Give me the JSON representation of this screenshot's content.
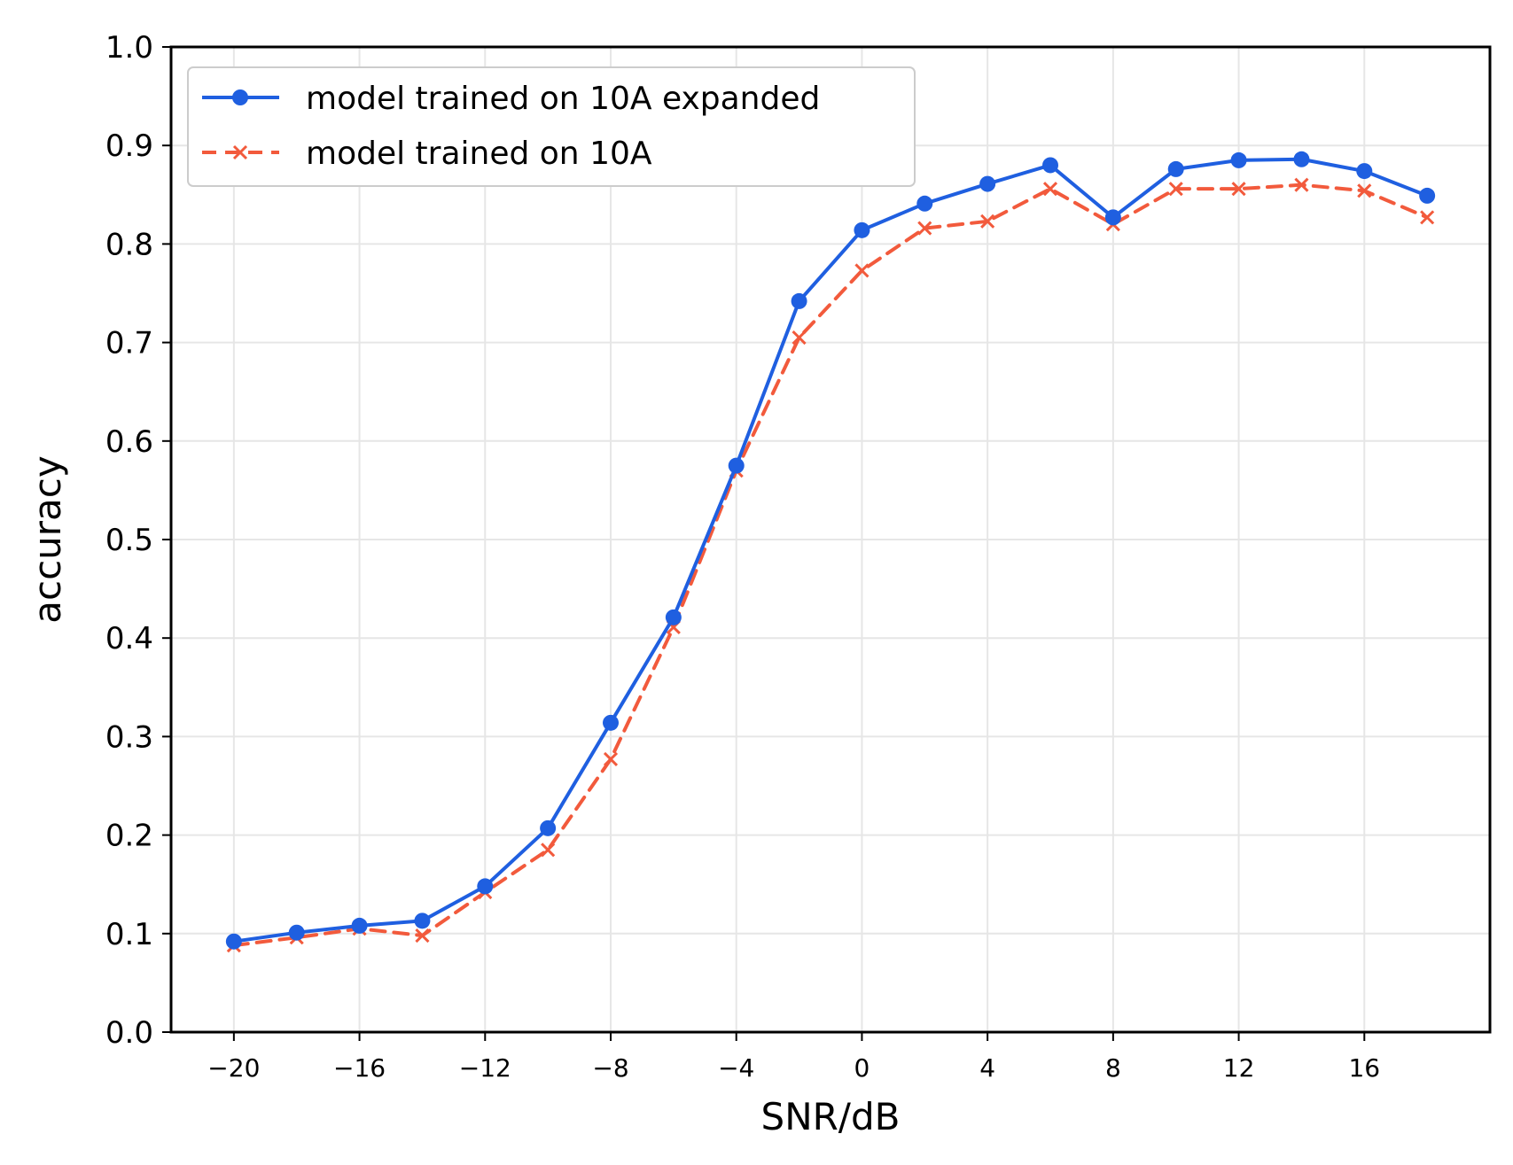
{
  "chart_data": {
    "type": "line",
    "title": "",
    "xlabel": "SNR/dB",
    "ylabel": "accuracy",
    "xlim": [
      -22,
      20
    ],
    "ylim": [
      0.0,
      1.0
    ],
    "grid": true,
    "legend_position": "top-left",
    "x_ticks": [
      -20,
      -16,
      -12,
      -8,
      -4,
      0,
      4,
      8,
      12,
      16
    ],
    "x_tick_labels": [
      "−20",
      "−16",
      "−12",
      "−8",
      "−4",
      "0",
      "4",
      "8",
      "12",
      "16"
    ],
    "y_ticks": [
      0.0,
      0.1,
      0.2,
      0.3,
      0.4,
      0.5,
      0.6,
      0.7,
      0.8,
      0.9,
      1.0
    ],
    "y_tick_labels": [
      "0.0",
      "0.1",
      "0.2",
      "0.3",
      "0.4",
      "0.5",
      "0.6",
      "0.7",
      "0.8",
      "0.9",
      "1.0"
    ],
    "x": [
      -20,
      -18,
      -16,
      -14,
      -12,
      -10,
      -8,
      -6,
      -4,
      -2,
      0,
      2,
      4,
      6,
      8,
      10,
      12,
      14,
      16,
      18
    ],
    "series": [
      {
        "name": "model trained on 10A expanded",
        "color": "#1f5fe0",
        "line_style": "solid",
        "marker": "circle",
        "values": [
          0.092,
          0.101,
          0.108,
          0.113,
          0.148,
          0.207,
          0.314,
          0.421,
          0.575,
          0.742,
          0.814,
          0.841,
          0.861,
          0.88,
          0.827,
          0.876,
          0.885,
          0.886,
          0.874,
          0.849
        ]
      },
      {
        "name": "model trained on 10A",
        "color": "#f25a3c",
        "line_style": "dashed",
        "marker": "x",
        "values": [
          0.088,
          0.096,
          0.105,
          0.098,
          0.142,
          0.185,
          0.277,
          0.411,
          0.57,
          0.705,
          0.773,
          0.816,
          0.823,
          0.856,
          0.82,
          0.856,
          0.856,
          0.86,
          0.854,
          0.827
        ]
      }
    ]
  }
}
